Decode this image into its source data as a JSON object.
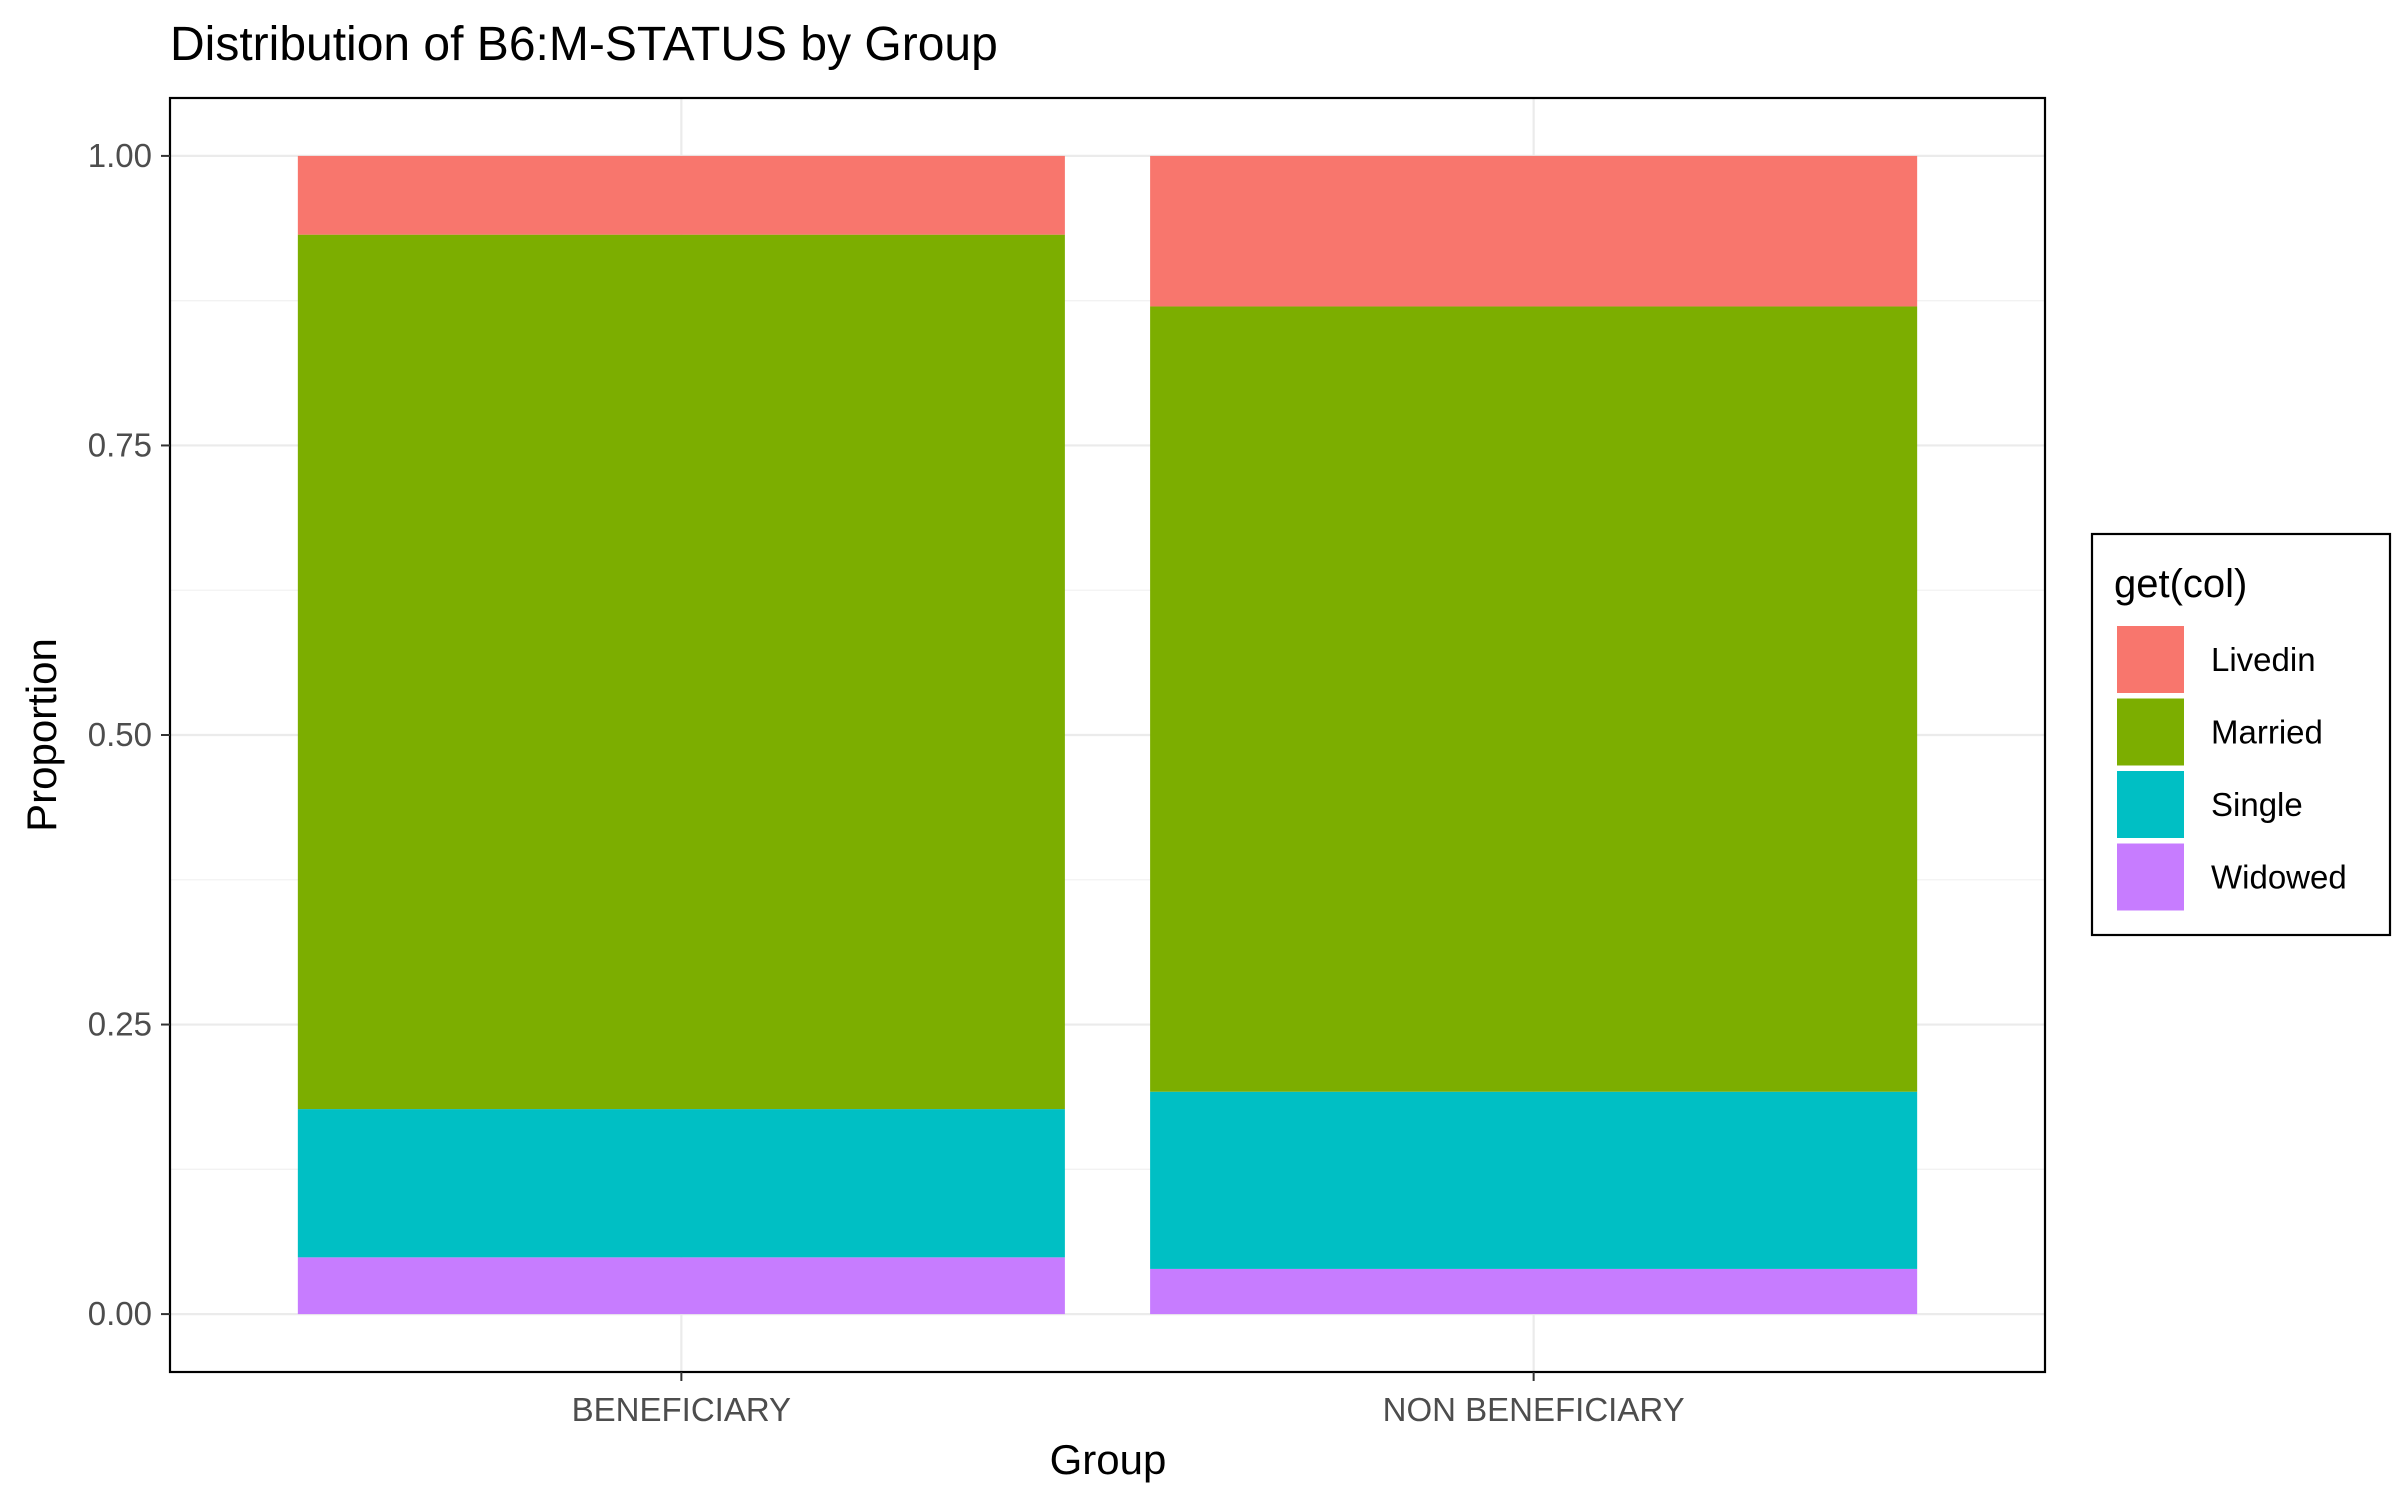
{
  "chart_data": {
    "type": "bar",
    "stacked": true,
    "title": "Distribution of B6:M-STATUS by Group",
    "xlabel": "Group",
    "ylabel": "Proportion",
    "categories": [
      "BENEFICIARY",
      "NON BENEFICIARY"
    ],
    "ylim": [
      -0.05,
      1.05
    ],
    "yticks": [
      0.0,
      0.25,
      0.5,
      0.75,
      1.0
    ],
    "ytick_labels": [
      "0.00",
      "0.25",
      "0.50",
      "0.75",
      "1.00"
    ],
    "grid": true,
    "legend_title": "get(col)",
    "legend_position": "right",
    "series": [
      {
        "name": "Livedin",
        "color": "#F8766D",
        "values": [
          0.068,
          0.13
        ]
      },
      {
        "name": "Married",
        "color": "#7CAE00",
        "values": [
          0.755,
          0.678
        ]
      },
      {
        "name": "Single",
        "color": "#00BFC4",
        "values": [
          0.128,
          0.153
        ]
      },
      {
        "name": "Widowed",
        "color": "#C77CFF",
        "values": [
          0.049,
          0.039
        ]
      }
    ]
  }
}
